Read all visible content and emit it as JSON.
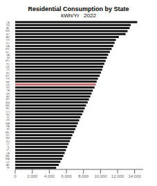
{
  "chart_data": {
    "type": "bar",
    "orientation": "horizontal",
    "title": "Residential Consumption by State",
    "subtitle": "kWh/Yr   2022",
    "categories": [
      "LA",
      "TN",
      "AL",
      "MS",
      "SC",
      "AR",
      "OK",
      "KY",
      "GA",
      "WV",
      "NC",
      "VA",
      "IN",
      "MO",
      "FL",
      "DE",
      "TX",
      "SD",
      "WY",
      "KS",
      "NE",
      "US",
      "WI",
      "IA",
      "OH",
      "AZ",
      "MT",
      "NM",
      "MN",
      "ND",
      "CO",
      "NV",
      "ID",
      "OR",
      "WA",
      "PA",
      "MI",
      "MD",
      "NY",
      "NH",
      "NJ",
      "CT",
      "IL",
      "VT",
      "CA",
      "ME",
      "MA",
      "UT",
      "AK",
      "HI"
    ],
    "values": [
      14302,
      13545,
      13417,
      13170,
      12937,
      12150,
      11800,
      11650,
      11500,
      11300,
      11100,
      10900,
      10750,
      10600,
      10450,
      10300,
      10200,
      10050,
      9900,
      9700,
      9550,
      9450,
      9300,
      9100,
      8950,
      8800,
      8650,
      8500,
      8300,
      8150,
      8000,
      7850,
      7650,
      7500,
      7350,
      7200,
      7050,
      6900,
      6700,
      6550,
      6400,
      6250,
      6100,
      5950,
      5800,
      5650,
      5500,
      5300,
      5100,
      4800
    ],
    "colors": [
      "#111111",
      "#111111",
      "#111111",
      "#111111",
      "#111111",
      "#111111",
      "#111111",
      "#111111",
      "#111111",
      "#111111",
      "#111111",
      "#111111",
      "#111111",
      "#111111",
      "#111111",
      "#111111",
      "#111111",
      "#111111",
      "#111111",
      "#111111",
      "#111111",
      "#cc6666",
      "#111111",
      "#111111",
      "#111111",
      "#111111",
      "#111111",
      "#111111",
      "#111111",
      "#111111",
      "#111111",
      "#111111",
      "#111111",
      "#111111",
      "#111111",
      "#111111",
      "#111111",
      "#111111",
      "#111111",
      "#111111",
      "#111111",
      "#111111",
      "#111111",
      "#111111",
      "#111111",
      "#111111",
      "#111111",
      "#111111",
      "#111111",
      "#111111"
    ],
    "xlim": [
      0,
      15000
    ],
    "xticks": [
      0,
      {
        "value": 2000,
        "label": "2,000"
      },
      {
        "value": 4000,
        "label": "4,000"
      },
      {
        "value": 6000,
        "label": "6,000"
      },
      {
        "value": 8000,
        "label": "8,000"
      },
      {
        "value": 10000,
        "label": "10,000"
      },
      {
        "value": 12000,
        "label": "12,000"
      },
      {
        "value": 14000,
        "label": "14,000"
      }
    ],
    "grid": false
  }
}
